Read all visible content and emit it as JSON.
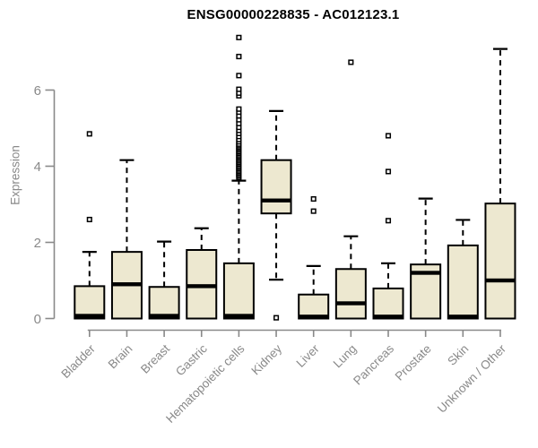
{
  "chart_data": {
    "type": "boxplot",
    "title": "ENSG00000228835 - AC012123.1",
    "ylabel": "Expression",
    "xlabel": "",
    "yticks": [
      0,
      2,
      4,
      6
    ],
    "ylim": [
      -0.3,
      7.55
    ],
    "grid": false,
    "legend": "none",
    "categories": [
      "Bladder",
      "Brain",
      "Breast",
      "Gastric",
      "Hematopoietic cells",
      "Kidney",
      "Liver",
      "Lung",
      "Pancreas",
      "Prostate",
      "Skin",
      "Unknown / Other"
    ],
    "series": [
      {
        "label": "Bladder",
        "min": 0,
        "q1": 0,
        "median": 0.07,
        "q3": 0.85,
        "max": 1.75,
        "outliers": [
          2.6,
          4.85
        ]
      },
      {
        "label": "Brain",
        "min": 0,
        "q1": 0,
        "median": 0.9,
        "q3": 1.75,
        "max": 4.16,
        "outliers": []
      },
      {
        "label": "Breast",
        "min": 0,
        "q1": 0,
        "median": 0.07,
        "q3": 0.83,
        "max": 2.02,
        "outliers": []
      },
      {
        "label": "Gastric",
        "min": 0,
        "q1": 0,
        "median": 0.85,
        "q3": 1.8,
        "max": 2.37,
        "outliers": []
      },
      {
        "label": "Hematopoietic cells",
        "min": 0,
        "q1": 0,
        "median": 0.07,
        "q3": 1.45,
        "max": 3.62,
        "outliers": [
          3.7,
          3.74,
          3.78,
          3.82,
          3.86,
          3.9,
          3.94,
          3.98,
          4.02,
          4.06,
          4.1,
          4.14,
          4.18,
          4.22,
          4.26,
          4.3,
          4.34,
          4.38,
          4.42,
          4.46,
          4.5,
          4.54,
          4.58,
          4.64,
          4.7,
          4.78,
          4.86,
          4.94,
          5.02,
          5.12,
          5.22,
          5.32,
          5.42,
          5.5,
          5.85,
          5.92,
          6.02,
          6.38,
          6.88,
          7.38
        ]
      },
      {
        "label": "Kidney",
        "min": 1.02,
        "q1": 2.76,
        "median": 3.1,
        "q3": 4.16,
        "max": 5.45,
        "outliers": [
          0.02
        ]
      },
      {
        "label": "Liver",
        "min": 0,
        "q1": 0,
        "median": 0.05,
        "q3": 0.63,
        "max": 1.38,
        "outliers": [
          2.82,
          3.14
        ]
      },
      {
        "label": "Lung",
        "min": 0,
        "q1": 0,
        "median": 0.4,
        "q3": 1.3,
        "max": 2.16,
        "outliers": [
          6.73
        ]
      },
      {
        "label": "Pancreas",
        "min": 0,
        "q1": 0,
        "median": 0.05,
        "q3": 0.79,
        "max": 1.45,
        "outliers": [
          2.57,
          3.86,
          4.8
        ]
      },
      {
        "label": "Prostate",
        "min": 0,
        "q1": 0,
        "median": 1.2,
        "q3": 1.42,
        "max": 3.15,
        "outliers": []
      },
      {
        "label": "Skin",
        "min": 0,
        "q1": 0,
        "median": 0.05,
        "q3": 1.92,
        "max": 2.59,
        "outliers": []
      },
      {
        "label": "Unknown / Other",
        "min": 0,
        "q1": 0,
        "median": 1.0,
        "q3": 3.02,
        "max": 7.08,
        "outliers": []
      }
    ],
    "colors": {
      "box_fill": "#EDE8D0",
      "box_border": "#000000",
      "median": "#000000",
      "whisker": "#000000",
      "outlier_fill": "#FFFFFF",
      "outlier_border": "#000000",
      "axis": "#898989",
      "tick_label": "#898989",
      "title": "#000000",
      "background": "#FFFFFF"
    }
  }
}
